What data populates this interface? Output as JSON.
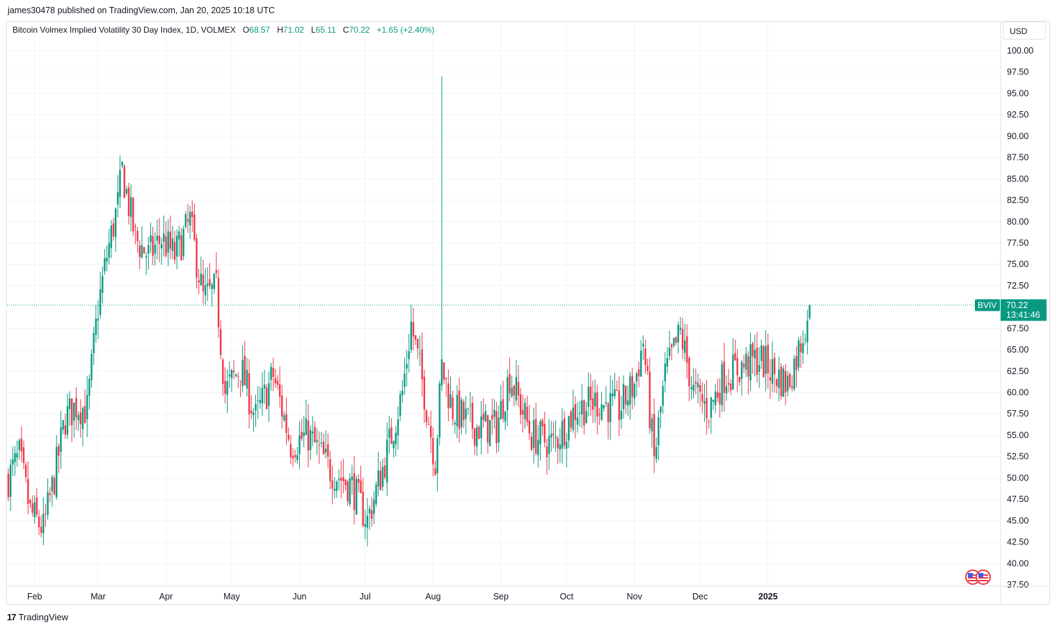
{
  "caption": "james30478 published on TradingView.com, Jan 20, 2025 10:18 UTC",
  "legend": {
    "title": "Bitcoin Volmex Implied Volatility 30 Day Index, 1D, VOLMEX",
    "o_label": "O",
    "o_value": "68.57",
    "h_label": "H",
    "h_value": "71.02",
    "l_label": "L",
    "l_value": "65.11",
    "c_label": "C",
    "c_value": "70.22",
    "change": "+1.65 (+2.40%)"
  },
  "currency": "USD",
  "price_badge": {
    "symbol": "BVIV",
    "price": "70.22",
    "countdown": "13:41:46"
  },
  "footer": {
    "brand_mark": "17",
    "brand_name": "TradingView"
  },
  "colors": {
    "up": "#089981",
    "down": "#f23645",
    "grid": "#f0f3fa",
    "axis_text": "#131722"
  },
  "icons": [
    "flag-icon",
    "tradingview-logo-icon"
  ],
  "chart_data": {
    "type": "candlestick",
    "title": "Bitcoin Volmex Implied Volatility 30 Day Index, 1D, VOLMEX",
    "y_ticks": [
      "100.00",
      "97.50",
      "95.00",
      "92.50",
      "90.00",
      "87.50",
      "85.00",
      "82.50",
      "80.00",
      "77.50",
      "75.00",
      "72.50",
      "67.50",
      "65.00",
      "62.50",
      "60.00",
      "57.50",
      "55.00",
      "52.50",
      "50.00",
      "47.50",
      "45.00",
      "42.50",
      "40.00",
      "37.50"
    ],
    "x_ticks": [
      "Feb",
      "Mar",
      "Apr",
      "May",
      "Jun",
      "Jul",
      "Aug",
      "Sep",
      "Oct",
      "Nov",
      "Dec",
      "2025"
    ],
    "ylim": [
      37.5,
      100
    ],
    "grid": true,
    "last_close": 70.22,
    "series_close": [
      [
        "2024-01-20",
        50.0
      ],
      [
        "2024-01-25",
        52.5
      ],
      [
        "2024-01-30",
        46.0
      ],
      [
        "2024-02-05",
        44.0
      ],
      [
        "2024-02-10",
        50.0
      ],
      [
        "2024-02-15",
        57.0
      ],
      [
        "2024-02-20",
        58.5
      ],
      [
        "2024-02-25",
        58.0
      ],
      [
        "2024-03-01",
        70.0
      ],
      [
        "2024-03-05",
        76.0
      ],
      [
        "2024-03-10",
        82.0
      ],
      [
        "2024-03-12",
        86.0
      ],
      [
        "2024-03-18",
        78.0
      ],
      [
        "2024-03-24",
        76.0
      ],
      [
        "2024-03-30",
        78.0
      ],
      [
        "2024-04-05",
        76.0
      ],
      [
        "2024-04-12",
        80.0
      ],
      [
        "2024-04-18",
        71.0
      ],
      [
        "2024-04-24",
        72.0
      ],
      [
        "2024-04-28",
        60.0
      ],
      [
        "2024-05-05",
        63.0
      ],
      [
        "2024-05-12",
        57.0
      ],
      [
        "2024-05-20",
        62.0
      ],
      [
        "2024-05-28",
        54.0
      ],
      [
        "2024-06-05",
        55.0
      ],
      [
        "2024-06-15",
        51.0
      ],
      [
        "2024-06-25",
        49.0
      ],
      [
        "2024-07-02",
        45.0
      ],
      [
        "2024-07-10",
        52.0
      ],
      [
        "2024-07-18",
        60.0
      ],
      [
        "2024-07-22",
        68.0
      ],
      [
        "2024-07-28",
        60.0
      ],
      [
        "2024-08-02",
        52.0
      ],
      [
        "2024-08-05",
        63.0
      ],
      [
        "2024-08-10",
        58.0
      ],
      [
        "2024-08-20",
        56.0
      ],
      [
        "2024-08-30",
        56.0
      ],
      [
        "2024-09-05",
        62.0
      ],
      [
        "2024-09-15",
        55.0
      ],
      [
        "2024-09-25",
        54.0
      ],
      [
        "2024-10-05",
        58.0
      ],
      [
        "2024-10-15",
        59.0
      ],
      [
        "2024-10-25",
        58.0
      ],
      [
        "2024-11-01",
        61.0
      ],
      [
        "2024-11-05",
        66.0
      ],
      [
        "2024-11-10",
        52.0
      ],
      [
        "2024-11-15",
        62.0
      ],
      [
        "2024-11-22",
        67.0
      ],
      [
        "2024-11-28",
        60.0
      ],
      [
        "2024-12-05",
        58.0
      ],
      [
        "2024-12-12",
        62.0
      ],
      [
        "2024-12-20",
        63.0
      ],
      [
        "2024-12-28",
        64.0
      ],
      [
        "2025-01-05",
        62.0
      ],
      [
        "2025-01-10",
        61.0
      ],
      [
        "2025-01-15",
        65.0
      ],
      [
        "2025-01-20",
        70.22
      ]
    ],
    "spike": {
      "date": "2024-08-05",
      "high": 97.0
    }
  }
}
